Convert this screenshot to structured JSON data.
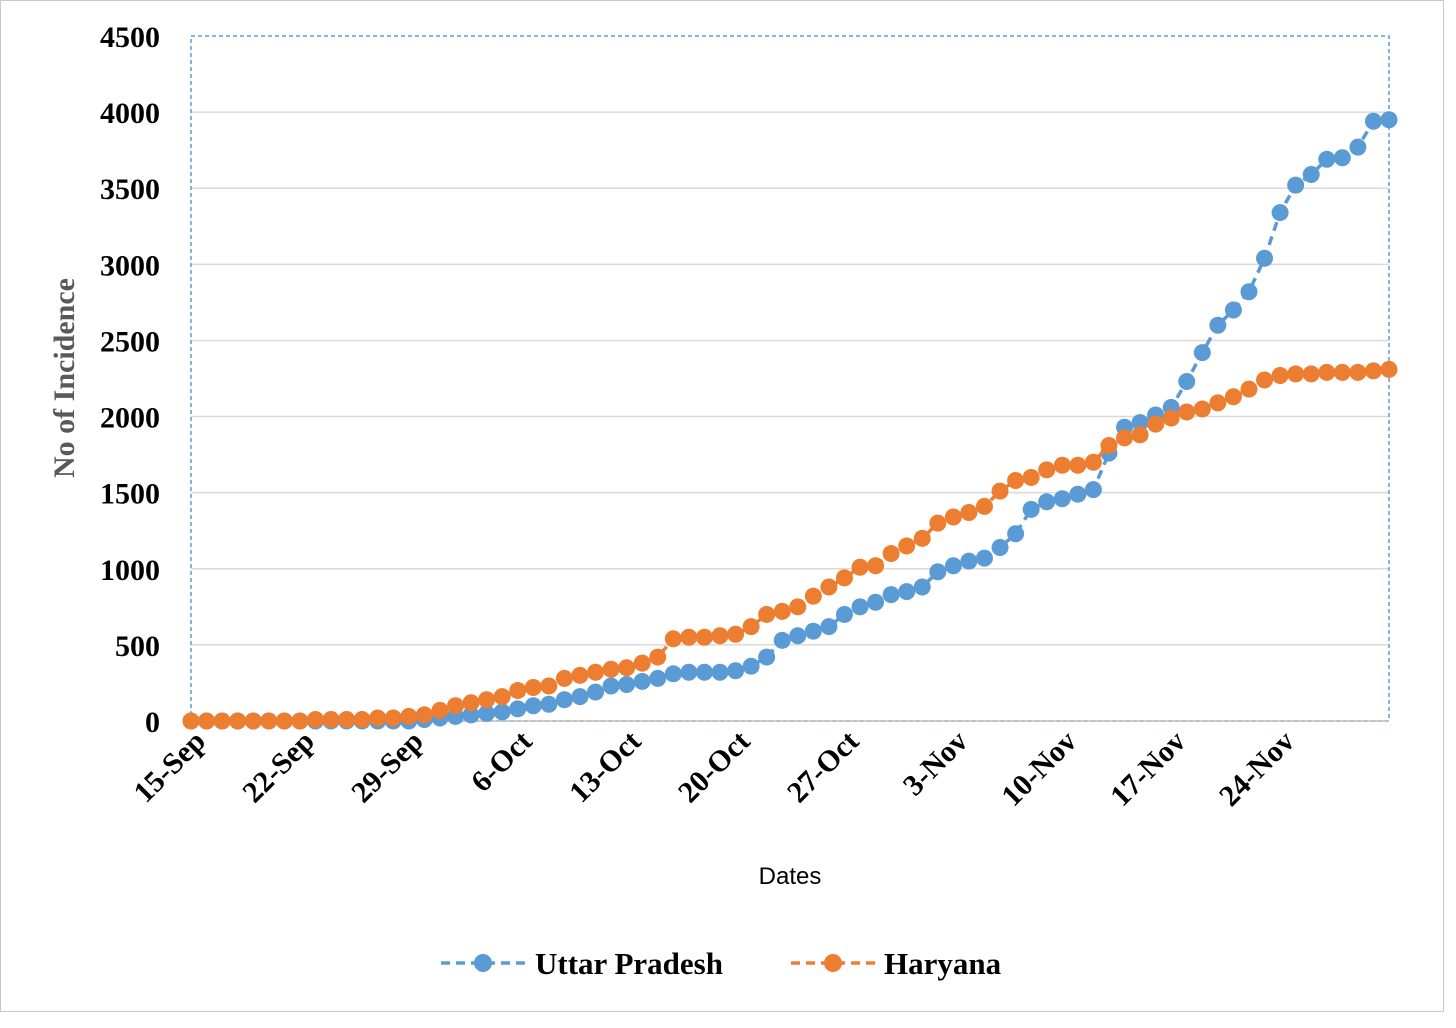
{
  "chart_data": {
    "type": "line",
    "title": "",
    "xlabel": "Dates",
    "ylabel": "No of Incidence",
    "ylim": [
      0,
      4500
    ],
    "yticks": [
      0,
      500,
      1000,
      1500,
      2000,
      2500,
      3000,
      3500,
      4000,
      4500
    ],
    "xlim": [
      "15-Sep",
      "1-Dec"
    ],
    "xtick_labels": [
      "15-Sep",
      "22-Sep",
      "29-Sep",
      "6-Oct",
      "13-Oct",
      "20-Oct",
      "27-Oct",
      "3-Nov",
      "10-Nov",
      "17-Nov",
      "24-Nov"
    ],
    "grid": "horizontal",
    "legend_position": "bottom",
    "x": [
      "15-Sep",
      "16-Sep",
      "17-Sep",
      "18-Sep",
      "19-Sep",
      "20-Sep",
      "21-Sep",
      "22-Sep",
      "23-Sep",
      "24-Sep",
      "25-Sep",
      "26-Sep",
      "27-Sep",
      "28-Sep",
      "29-Sep",
      "30-Sep",
      "1-Oct",
      "2-Oct",
      "3-Oct",
      "4-Oct",
      "5-Oct",
      "6-Oct",
      "7-Oct",
      "8-Oct",
      "9-Oct",
      "10-Oct",
      "11-Oct",
      "12-Oct",
      "13-Oct",
      "14-Oct",
      "15-Oct",
      "16-Oct",
      "17-Oct",
      "18-Oct",
      "19-Oct",
      "20-Oct",
      "21-Oct",
      "22-Oct",
      "23-Oct",
      "24-Oct",
      "25-Oct",
      "26-Oct",
      "27-Oct",
      "28-Oct",
      "29-Oct",
      "30-Oct",
      "31-Oct",
      "1-Nov",
      "2-Nov",
      "3-Nov",
      "4-Nov",
      "5-Nov",
      "6-Nov",
      "7-Nov",
      "8-Nov",
      "9-Nov",
      "10-Nov",
      "11-Nov",
      "12-Nov",
      "13-Nov",
      "14-Nov",
      "15-Nov",
      "16-Nov",
      "17-Nov",
      "18-Nov",
      "19-Nov",
      "20-Nov",
      "21-Nov",
      "22-Nov",
      "23-Nov",
      "24-Nov",
      "25-Nov",
      "26-Nov",
      "27-Nov",
      "28-Nov",
      "29-Nov",
      "30-Nov",
      "1-Dec"
    ],
    "series": [
      {
        "name": "Uttar Pradesh",
        "color": "#5b9bd5",
        "line_style": "dashed",
        "marker": "circle",
        "values": [
          0,
          0,
          0,
          0,
          0,
          0,
          0,
          0,
          0,
          0,
          0,
          0,
          0,
          0,
          0,
          10,
          20,
          30,
          40,
          50,
          60,
          80,
          100,
          110,
          140,
          160,
          190,
          230,
          240,
          260,
          280,
          310,
          320,
          320,
          320,
          330,
          360,
          420,
          530,
          560,
          590,
          620,
          700,
          750,
          780,
          830,
          850,
          880,
          980,
          1020,
          1050,
          1070,
          1140,
          1230,
          1390,
          1440,
          1460,
          1490,
          1520,
          1760,
          1930,
          1960,
          2010,
          2060,
          2230,
          2420,
          2600,
          2700,
          2820,
          3040,
          3340,
          3520,
          3590,
          3690,
          3700,
          3770,
          3940,
          3950
        ]
      },
      {
        "name": "Haryana",
        "color": "#ed7d31",
        "line_style": "dashed",
        "marker": "circle",
        "values": [
          0,
          0,
          0,
          0,
          0,
          0,
          0,
          0,
          10,
          10,
          10,
          10,
          20,
          20,
          30,
          40,
          70,
          100,
          120,
          140,
          160,
          200,
          220,
          230,
          280,
          300,
          320,
          340,
          350,
          380,
          420,
          540,
          550,
          550,
          560,
          570,
          620,
          700,
          720,
          750,
          820,
          880,
          940,
          1010,
          1020,
          1100,
          1150,
          1200,
          1300,
          1340,
          1370,
          1410,
          1510,
          1580,
          1600,
          1650,
          1680,
          1680,
          1700,
          1810,
          1860,
          1880,
          1950,
          1990,
          2030,
          2050,
          2090,
          2130,
          2180,
          2240,
          2270,
          2280,
          2280,
          2290,
          2290,
          2290,
          2300,
          2310
        ]
      }
    ]
  }
}
